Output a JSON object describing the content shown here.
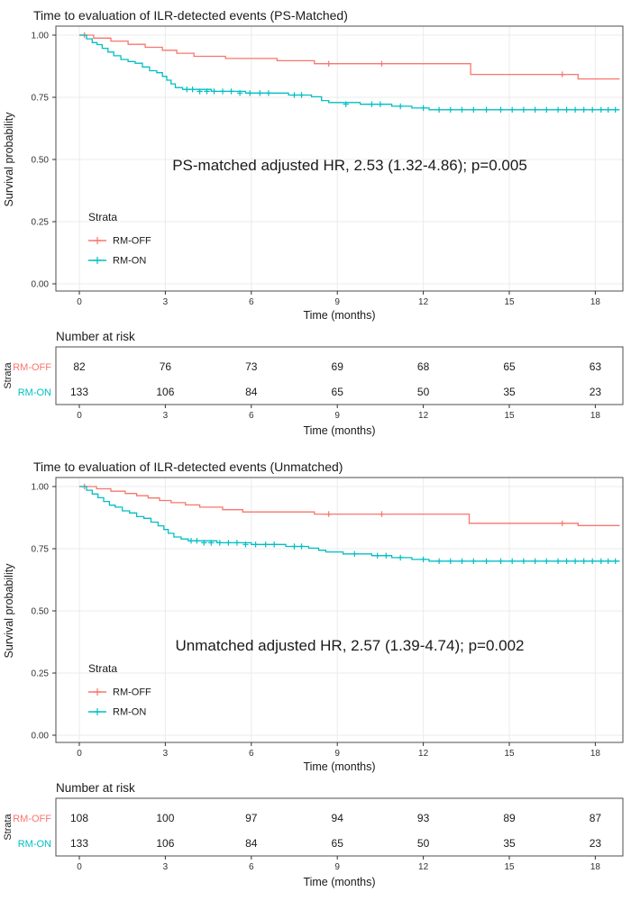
{
  "colors": {
    "rm_off": "#F8766D",
    "rm_on": "#00BFC4",
    "grid": "#EBEBEB",
    "panel_border": "#4d4d4d",
    "text": "#1a1a1a",
    "tick_text": "#333333"
  },
  "chart_data": [
    {
      "type": "line",
      "subtype": "kaplan-meier",
      "title": "Time to evaluation of ILR-detected events (PS-Matched)",
      "xlabel": "Time (months)",
      "ylabel": "Survival probability",
      "xticks": [
        0,
        3,
        6,
        9,
        12,
        15,
        18
      ],
      "yticks": [
        0,
        0.25,
        0.5,
        0.75,
        1
      ],
      "xlim": [
        -0.8,
        19
      ],
      "ylim": [
        0,
        1.04
      ],
      "t_end": 18.85,
      "annotation": "PS-matched adjusted HR, 2.53 (1.32-4.86); p=0.005",
      "legend": {
        "title": "Strata"
      },
      "series": [
        {
          "name": "RM-OFF",
          "color": "#F8766D",
          "steps": [
            [
              0,
              1.0
            ],
            [
              0.5,
              0.988
            ],
            [
              1.1,
              0.976
            ],
            [
              1.7,
              0.963
            ],
            [
              2.3,
              0.951
            ],
            [
              2.9,
              0.939
            ],
            [
              3.4,
              0.927
            ],
            [
              4.0,
              0.915
            ],
            [
              5.1,
              0.906
            ],
            [
              6.9,
              0.897
            ],
            [
              8.2,
              0.885
            ],
            [
              13.65,
              0.842
            ],
            [
              17.4,
              0.824
            ]
          ],
          "censors": [
            [
              0.18,
              1.0
            ],
            [
              8.7,
              0.885
            ],
            [
              10.55,
              0.885
            ],
            [
              16.85,
              0.842
            ]
          ]
        },
        {
          "name": "RM-ON",
          "color": "#00BFC4",
          "steps": [
            [
              0,
              1.0
            ],
            [
              0.25,
              0.985
            ],
            [
              0.45,
              0.97
            ],
            [
              0.62,
              0.962
            ],
            [
              0.8,
              0.947
            ],
            [
              1.0,
              0.932
            ],
            [
              1.2,
              0.917
            ],
            [
              1.45,
              0.902
            ],
            [
              1.7,
              0.894
            ],
            [
              1.95,
              0.887
            ],
            [
              2.2,
              0.872
            ],
            [
              2.45,
              0.857
            ],
            [
              2.7,
              0.849
            ],
            [
              2.9,
              0.834
            ],
            [
              3.05,
              0.819
            ],
            [
              3.2,
              0.804
            ],
            [
              3.35,
              0.789
            ],
            [
              3.6,
              0.782
            ],
            [
              4.6,
              0.774
            ],
            [
              5.8,
              0.767
            ],
            [
              7.3,
              0.759
            ],
            [
              8.1,
              0.752
            ],
            [
              8.45,
              0.737
            ],
            [
              8.7,
              0.729
            ],
            [
              9.8,
              0.722
            ],
            [
              10.9,
              0.714
            ],
            [
              11.6,
              0.707
            ],
            [
              12.2,
              0.7
            ]
          ],
          "censors": [
            [
              3.75,
              0.782
            ],
            [
              3.95,
              0.782
            ],
            [
              4.2,
              0.774
            ],
            [
              4.45,
              0.774
            ],
            [
              4.7,
              0.774
            ],
            [
              5.0,
              0.774
            ],
            [
              5.3,
              0.774
            ],
            [
              5.6,
              0.767
            ],
            [
              5.95,
              0.767
            ],
            [
              6.3,
              0.767
            ],
            [
              6.6,
              0.767
            ],
            [
              7.5,
              0.759
            ],
            [
              7.75,
              0.759
            ],
            [
              9.3,
              0.722
            ],
            [
              10.2,
              0.722
            ],
            [
              10.5,
              0.722
            ],
            [
              11.2,
              0.714
            ],
            [
              12.0,
              0.707
            ],
            [
              12.55,
              0.7
            ],
            [
              12.95,
              0.7
            ],
            [
              13.35,
              0.7
            ],
            [
              13.75,
              0.7
            ],
            [
              14.2,
              0.7
            ],
            [
              14.7,
              0.7
            ],
            [
              15.1,
              0.7
            ],
            [
              15.5,
              0.7
            ],
            [
              15.9,
              0.7
            ],
            [
              16.3,
              0.7
            ],
            [
              16.7,
              0.7
            ],
            [
              17.0,
              0.7
            ],
            [
              17.3,
              0.7
            ],
            [
              17.6,
              0.7
            ],
            [
              17.9,
              0.7
            ],
            [
              18.2,
              0.7
            ],
            [
              18.45,
              0.7
            ],
            [
              18.7,
              0.7
            ]
          ]
        }
      ],
      "risk_table": {
        "title": "Number at risk",
        "ylabel": "Strata",
        "xlabel": "Time (months)",
        "xticks": [
          0,
          3,
          6,
          9,
          12,
          15,
          18
        ],
        "rows": [
          {
            "name": "RM-OFF",
            "color": "#F8766D",
            "values": [
              82,
              76,
              73,
              69,
              68,
              65,
              63
            ]
          },
          {
            "name": "RM-ON",
            "color": "#00BFC4",
            "values": [
              133,
              106,
              84,
              65,
              50,
              35,
              23
            ]
          }
        ]
      }
    },
    {
      "type": "line",
      "subtype": "kaplan-meier",
      "title": "Time to evaluation of ILR-detected events (Unmatched)",
      "xlabel": "Time (months)",
      "ylabel": "Survival probability",
      "xticks": [
        0,
        3,
        6,
        9,
        12,
        15,
        18
      ],
      "yticks": [
        0,
        0.25,
        0.5,
        0.75,
        1
      ],
      "xlim": [
        -0.8,
        19
      ],
      "ylim": [
        0,
        1.04
      ],
      "t_end": 18.85,
      "annotation": "Unmatched adjusted HR, 2.57 (1.39-4.74); p=0.002",
      "legend": {
        "title": "Strata"
      },
      "series": [
        {
          "name": "RM-OFF",
          "color": "#F8766D",
          "steps": [
            [
              0,
              1.0
            ],
            [
              0.6,
              0.991
            ],
            [
              1.1,
              0.981
            ],
            [
              1.6,
              0.972
            ],
            [
              2.0,
              0.963
            ],
            [
              2.4,
              0.954
            ],
            [
              2.8,
              0.944
            ],
            [
              3.2,
              0.935
            ],
            [
              3.7,
              0.926
            ],
            [
              4.2,
              0.917
            ],
            [
              5.0,
              0.907
            ],
            [
              5.7,
              0.898
            ],
            [
              8.2,
              0.889
            ],
            [
              13.6,
              0.852
            ],
            [
              17.4,
              0.843
            ]
          ],
          "censors": [
            [
              0.18,
              1.0
            ],
            [
              8.7,
              0.889
            ],
            [
              10.55,
              0.889
            ],
            [
              16.85,
              0.852
            ]
          ]
        },
        {
          "name": "RM-ON",
          "color": "#00BFC4",
          "steps": [
            [
              0,
              1.0
            ],
            [
              0.25,
              0.985
            ],
            [
              0.45,
              0.97
            ],
            [
              0.65,
              0.955
            ],
            [
              0.85,
              0.94
            ],
            [
              1.05,
              0.925
            ],
            [
              1.25,
              0.917
            ],
            [
              1.5,
              0.902
            ],
            [
              1.75,
              0.894
            ],
            [
              2.0,
              0.879
            ],
            [
              2.25,
              0.872
            ],
            [
              2.5,
              0.857
            ],
            [
              2.75,
              0.842
            ],
            [
              2.95,
              0.827
            ],
            [
              3.1,
              0.812
            ],
            [
              3.3,
              0.797
            ],
            [
              3.55,
              0.789
            ],
            [
              3.8,
              0.782
            ],
            [
              4.8,
              0.774
            ],
            [
              6.0,
              0.767
            ],
            [
              7.2,
              0.759
            ],
            [
              8.0,
              0.752
            ],
            [
              8.35,
              0.744
            ],
            [
              8.6,
              0.737
            ],
            [
              9.2,
              0.729
            ],
            [
              10.2,
              0.722
            ],
            [
              10.9,
              0.714
            ],
            [
              11.6,
              0.707
            ],
            [
              12.2,
              0.7
            ]
          ],
          "censors": [
            [
              3.9,
              0.782
            ],
            [
              4.1,
              0.782
            ],
            [
              4.35,
              0.774
            ],
            [
              4.6,
              0.774
            ],
            [
              4.9,
              0.774
            ],
            [
              5.2,
              0.774
            ],
            [
              5.5,
              0.774
            ],
            [
              5.8,
              0.767
            ],
            [
              6.15,
              0.767
            ],
            [
              6.5,
              0.767
            ],
            [
              6.8,
              0.767
            ],
            [
              7.5,
              0.759
            ],
            [
              7.75,
              0.759
            ],
            [
              9.6,
              0.729
            ],
            [
              10.4,
              0.722
            ],
            [
              10.7,
              0.722
            ],
            [
              11.2,
              0.714
            ],
            [
              12.0,
              0.707
            ],
            [
              12.55,
              0.7
            ],
            [
              12.95,
              0.7
            ],
            [
              13.35,
              0.7
            ],
            [
              13.75,
              0.7
            ],
            [
              14.2,
              0.7
            ],
            [
              14.7,
              0.7
            ],
            [
              15.1,
              0.7
            ],
            [
              15.5,
              0.7
            ],
            [
              15.9,
              0.7
            ],
            [
              16.3,
              0.7
            ],
            [
              16.7,
              0.7
            ],
            [
              17.0,
              0.7
            ],
            [
              17.3,
              0.7
            ],
            [
              17.6,
              0.7
            ],
            [
              17.9,
              0.7
            ],
            [
              18.2,
              0.7
            ],
            [
              18.45,
              0.7
            ],
            [
              18.7,
              0.7
            ]
          ]
        }
      ],
      "risk_table": {
        "title": "Number at risk",
        "ylabel": "Strata",
        "xlabel": "Time (months)",
        "xticks": [
          0,
          3,
          6,
          9,
          12,
          15,
          18
        ],
        "rows": [
          {
            "name": "RM-OFF",
            "color": "#F8766D",
            "values": [
              108,
              100,
              97,
              94,
              93,
              89,
              87
            ]
          },
          {
            "name": "RM-ON",
            "color": "#00BFC4",
            "values": [
              133,
              106,
              84,
              65,
              50,
              35,
              23
            ]
          }
        ]
      }
    }
  ]
}
